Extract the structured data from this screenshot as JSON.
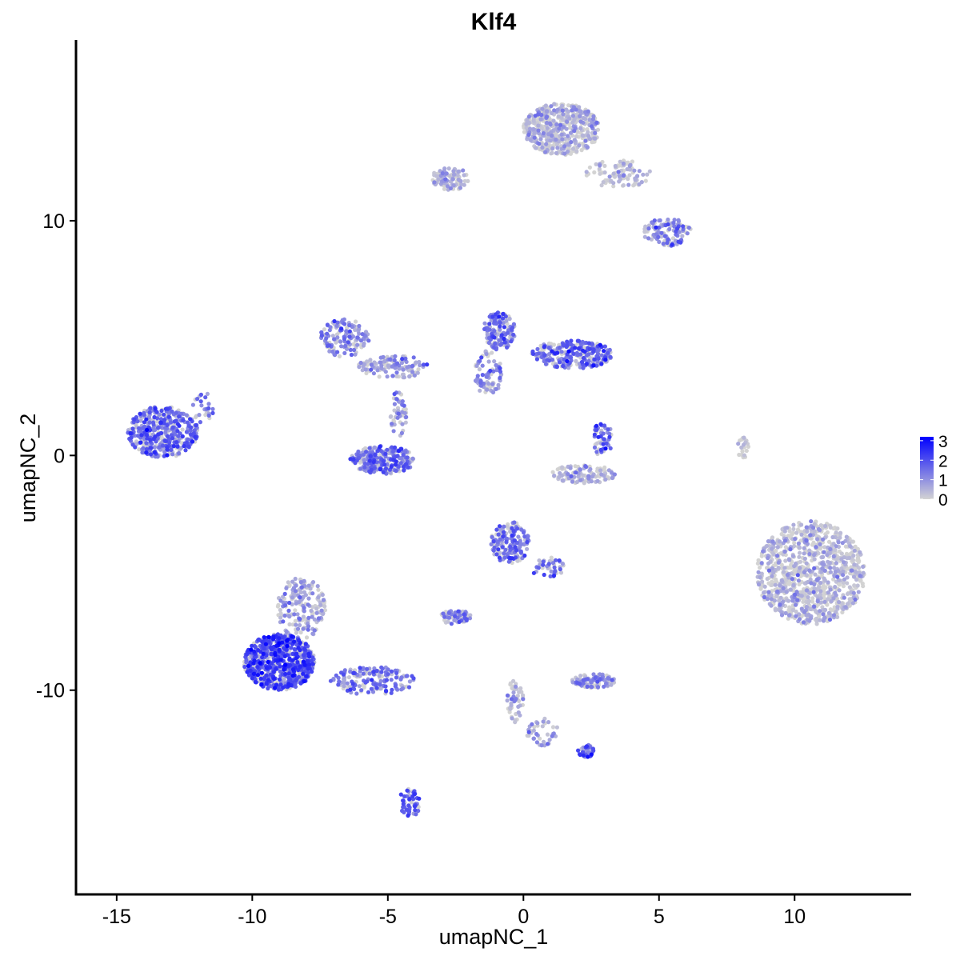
{
  "chart_data": {
    "type": "scatter",
    "title": "Klf4",
    "xlabel": "umapNC_1",
    "ylabel": "umapNC_2",
    "xlim": [
      -16.5,
      14.3
    ],
    "ylim": [
      -18.7,
      17.7
    ],
    "x_ticks": [
      -15,
      -10,
      -5,
      0,
      5,
      10
    ],
    "x_tick_labels": [
      "-15",
      "-10",
      "-5",
      "0",
      "5",
      "10"
    ],
    "y_ticks": [
      -10,
      0,
      10
    ],
    "y_tick_labels": [
      "-10",
      "0",
      "10"
    ],
    "legend": {
      "placement": "right",
      "min": 0,
      "max": 3.2,
      "ticks": [
        0,
        1,
        2,
        3
      ],
      "tick_labels": [
        "0",
        "1",
        "2",
        "3"
      ],
      "low_color": "#d3d3d3",
      "high_color": "#0000ff"
    },
    "grid": false,
    "clusters": [
      {
        "cx": -13.3,
        "cy": 1.0,
        "rx": 1.3,
        "ry": 1.1,
        "n": 420,
        "expr": 1.6
      },
      {
        "cx": -11.8,
        "cy": 2.0,
        "rx": 0.4,
        "ry": 0.7,
        "n": 25,
        "expr": 1.3
      },
      {
        "cx": -9.0,
        "cy": -8.8,
        "rx": 1.3,
        "ry": 1.2,
        "n": 700,
        "expr": 2.1
      },
      {
        "cx": -8.2,
        "cy": -6.5,
        "rx": 0.9,
        "ry": 1.3,
        "n": 180,
        "expr": 0.6
      },
      {
        "cx": -5.6,
        "cy": -9.6,
        "rx": 1.6,
        "ry": 0.6,
        "n": 160,
        "expr": 1.5
      },
      {
        "cx": -4.2,
        "cy": -14.8,
        "rx": 0.4,
        "ry": 0.6,
        "n": 50,
        "expr": 1.8
      },
      {
        "cx": -6.6,
        "cy": 5.0,
        "rx": 0.9,
        "ry": 0.8,
        "n": 140,
        "expr": 1.1
      },
      {
        "cx": -4.8,
        "cy": 3.8,
        "rx": 1.3,
        "ry": 0.5,
        "n": 120,
        "expr": 0.9
      },
      {
        "cx": -5.2,
        "cy": -0.2,
        "rx": 1.2,
        "ry": 0.6,
        "n": 260,
        "expr": 1.5
      },
      {
        "cx": -4.6,
        "cy": 1.8,
        "rx": 0.3,
        "ry": 1.0,
        "n": 45,
        "expr": 1.0
      },
      {
        "cx": -0.9,
        "cy": 5.3,
        "rx": 0.6,
        "ry": 0.8,
        "n": 150,
        "expr": 1.5
      },
      {
        "cx": 1.8,
        "cy": 4.3,
        "rx": 1.5,
        "ry": 0.6,
        "n": 280,
        "expr": 1.6
      },
      {
        "cx": -1.3,
        "cy": 3.5,
        "rx": 0.5,
        "ry": 1.0,
        "n": 80,
        "expr": 1.0
      },
      {
        "cx": 2.9,
        "cy": 0.7,
        "rx": 0.4,
        "ry": 0.7,
        "n": 50,
        "expr": 1.6
      },
      {
        "cx": 2.2,
        "cy": -0.8,
        "rx": 1.2,
        "ry": 0.4,
        "n": 110,
        "expr": 0.4
      },
      {
        "cx": 1.4,
        "cy": 13.9,
        "rx": 1.4,
        "ry": 1.1,
        "n": 520,
        "expr": 0.3
      },
      {
        "cx": 3.5,
        "cy": 12.0,
        "rx": 1.2,
        "ry": 0.6,
        "n": 90,
        "expr": 0.3
      },
      {
        "cx": 5.3,
        "cy": 9.5,
        "rx": 0.9,
        "ry": 0.6,
        "n": 110,
        "expr": 1.2
      },
      {
        "cx": -2.7,
        "cy": 11.8,
        "rx": 0.7,
        "ry": 0.5,
        "n": 90,
        "expr": 0.4
      },
      {
        "cx": -0.5,
        "cy": -3.7,
        "rx": 0.7,
        "ry": 0.9,
        "n": 160,
        "expr": 1.5
      },
      {
        "cx": 0.9,
        "cy": -4.8,
        "rx": 0.6,
        "ry": 0.5,
        "n": 40,
        "expr": 1.3
      },
      {
        "cx": -2.5,
        "cy": -6.9,
        "rx": 0.6,
        "ry": 0.3,
        "n": 60,
        "expr": 1.3
      },
      {
        "cx": 2.6,
        "cy": -9.6,
        "rx": 0.8,
        "ry": 0.3,
        "n": 90,
        "expr": 1.1
      },
      {
        "cx": 2.3,
        "cy": -12.6,
        "rx": 0.3,
        "ry": 0.3,
        "n": 40,
        "expr": 1.8
      },
      {
        "cx": -0.3,
        "cy": -10.5,
        "rx": 0.3,
        "ry": 1.0,
        "n": 50,
        "expr": 0.4
      },
      {
        "cx": 0.7,
        "cy": -11.8,
        "rx": 0.6,
        "ry": 0.6,
        "n": 40,
        "expr": 0.9
      },
      {
        "cx": 10.6,
        "cy": -5.0,
        "rx": 2.0,
        "ry": 2.2,
        "n": 950,
        "expr": 0.25
      },
      {
        "cx": 8.1,
        "cy": 0.3,
        "rx": 0.2,
        "ry": 0.6,
        "n": 20,
        "expr": 0.1
      }
    ]
  }
}
